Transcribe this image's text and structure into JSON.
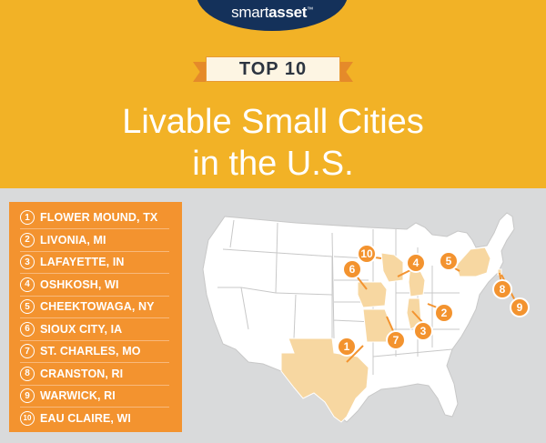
{
  "header": {
    "logo": {
      "left": "smart",
      "right": "asset",
      "tm": "™"
    },
    "banner_label": "TOP 10",
    "title_line1": "Livable Small Cities",
    "title_line2": "in the U.S."
  },
  "list": [
    {
      "rank": "1",
      "city": "FLOWER MOUND, TX"
    },
    {
      "rank": "2",
      "city": "LIVONIA, MI"
    },
    {
      "rank": "3",
      "city": "LAFAYETTE, IN"
    },
    {
      "rank": "4",
      "city": "OSHKOSH, WI"
    },
    {
      "rank": "5",
      "city": "CHEEKTOWAGA, NY"
    },
    {
      "rank": "6",
      "city": "SIOUX CITY, IA"
    },
    {
      "rank": "7",
      "city": "ST. CHARLES, MO"
    },
    {
      "rank": "8",
      "city": "CRANSTON, RI"
    },
    {
      "rank": "9",
      "city": "WARWICK, RI"
    },
    {
      "rank": "10",
      "city": "EAU CLAIRE, WI"
    }
  ],
  "map_markers": [
    "1",
    "2",
    "3",
    "4",
    "5",
    "6",
    "7",
    "8",
    "9",
    "10"
  ],
  "colors": {
    "header_bg": "#f2b226",
    "panel_bg": "#f3932f",
    "highlight_state": "#f7d7a1",
    "base_state": "#ffffff",
    "logo_bg": "#14315a",
    "page_bg": "#d9dadb"
  }
}
